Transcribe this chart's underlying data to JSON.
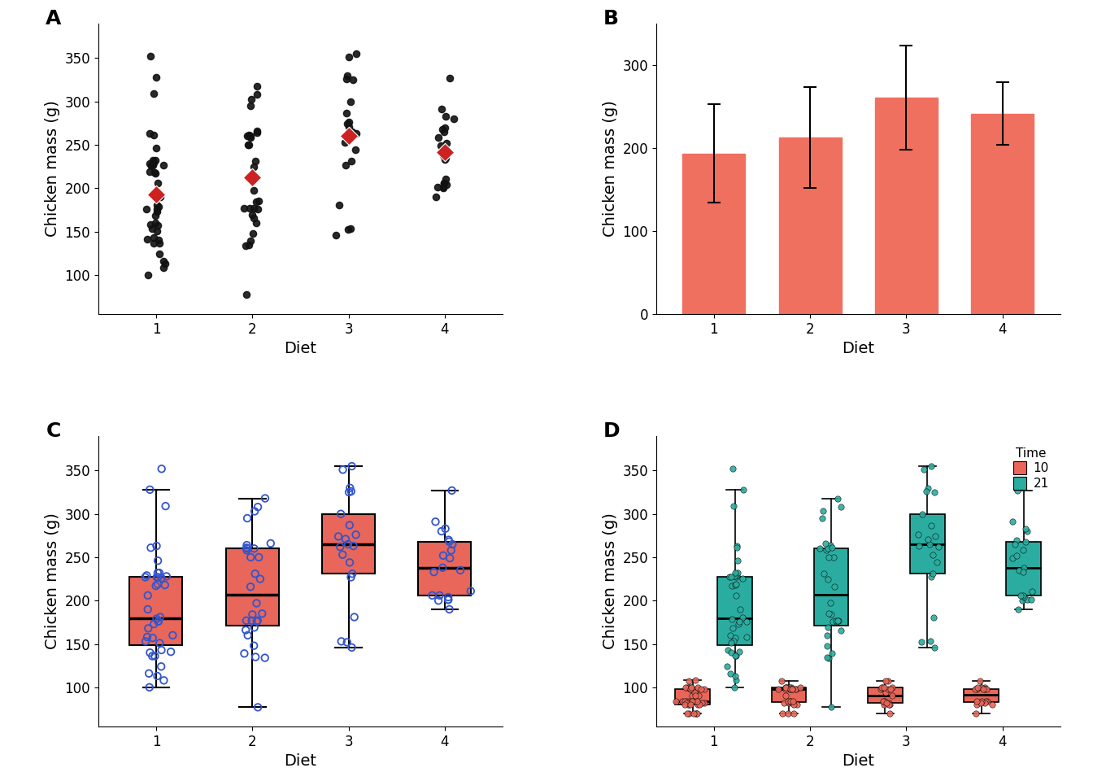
{
  "chick_final": {
    "1": [
      179,
      160,
      136,
      227,
      217,
      168,
      108,
      124,
      143,
      140,
      309,
      229,
      181,
      141,
      100,
      136,
      227,
      157,
      153,
      263,
      116,
      232,
      328,
      228,
      261,
      173,
      352,
      206,
      232,
      218,
      227,
      113,
      246,
      226,
      190,
      158,
      151,
      176,
      219,
      176
    ],
    "2": [
      160,
      148,
      169,
      260,
      134,
      135,
      139,
      176,
      166,
      177,
      225,
      258,
      250,
      231,
      308,
      318,
      250,
      295,
      177,
      264,
      177,
      303,
      260,
      77,
      184,
      185,
      216,
      266,
      197,
      261
    ],
    "3": [
      153,
      355,
      152,
      263,
      146,
      265,
      351,
      274,
      271,
      181,
      330,
      262,
      244,
      326,
      253,
      287,
      325,
      300,
      227,
      231,
      276
    ],
    "4": [
      327,
      291,
      200,
      201,
      201,
      204,
      211,
      270,
      265,
      258,
      268,
      238,
      249,
      206,
      252,
      280,
      283,
      235,
      206,
      190,
      233
    ]
  },
  "chick_day10": {
    "1": [
      98,
      90,
      98,
      100,
      82,
      70,
      84,
      84,
      98,
      80,
      82,
      70,
      84,
      84,
      100,
      70,
      100,
      90,
      108,
      98,
      84,
      100,
      82,
      107,
      82,
      94,
      100,
      100,
      98,
      80,
      84,
      98,
      80,
      70,
      90,
      84,
      80,
      84,
      84,
      70,
      100,
      82,
      98,
      80,
      80,
      70
    ],
    "2": [
      98,
      107,
      98,
      100,
      82,
      100,
      98,
      90,
      82,
      100,
      100,
      98,
      80,
      70,
      100,
      98,
      70,
      82,
      84,
      100,
      84,
      100,
      98,
      70,
      84,
      100,
      80,
      98,
      84,
      98
    ],
    "3": [
      98,
      100,
      82,
      107,
      82,
      94,
      100,
      100,
      98,
      80,
      84,
      98,
      80,
      70,
      90,
      84,
      80,
      84,
      82,
      100,
      107
    ],
    "4": [
      100,
      98,
      80,
      70,
      98,
      84,
      84,
      82,
      98,
      100,
      80,
      84,
      100,
      98,
      82,
      84,
      107,
      98
    ]
  },
  "bar_color": "#f07060",
  "box_color": "#e8675a",
  "scatter_color_raw": "#111111",
  "scatter_color_mean": "#cc2222",
  "box_jitter_color": "#3355cc",
  "panel_label_fontsize": 18,
  "axis_label_fontsize": 14,
  "tick_label_fontsize": 12,
  "xlabel": "Diet",
  "ylabel": "Chicken mass (g)",
  "bg_color": "#ffffff",
  "time10_color": "#e8675a",
  "time21_color": "#2aada0"
}
